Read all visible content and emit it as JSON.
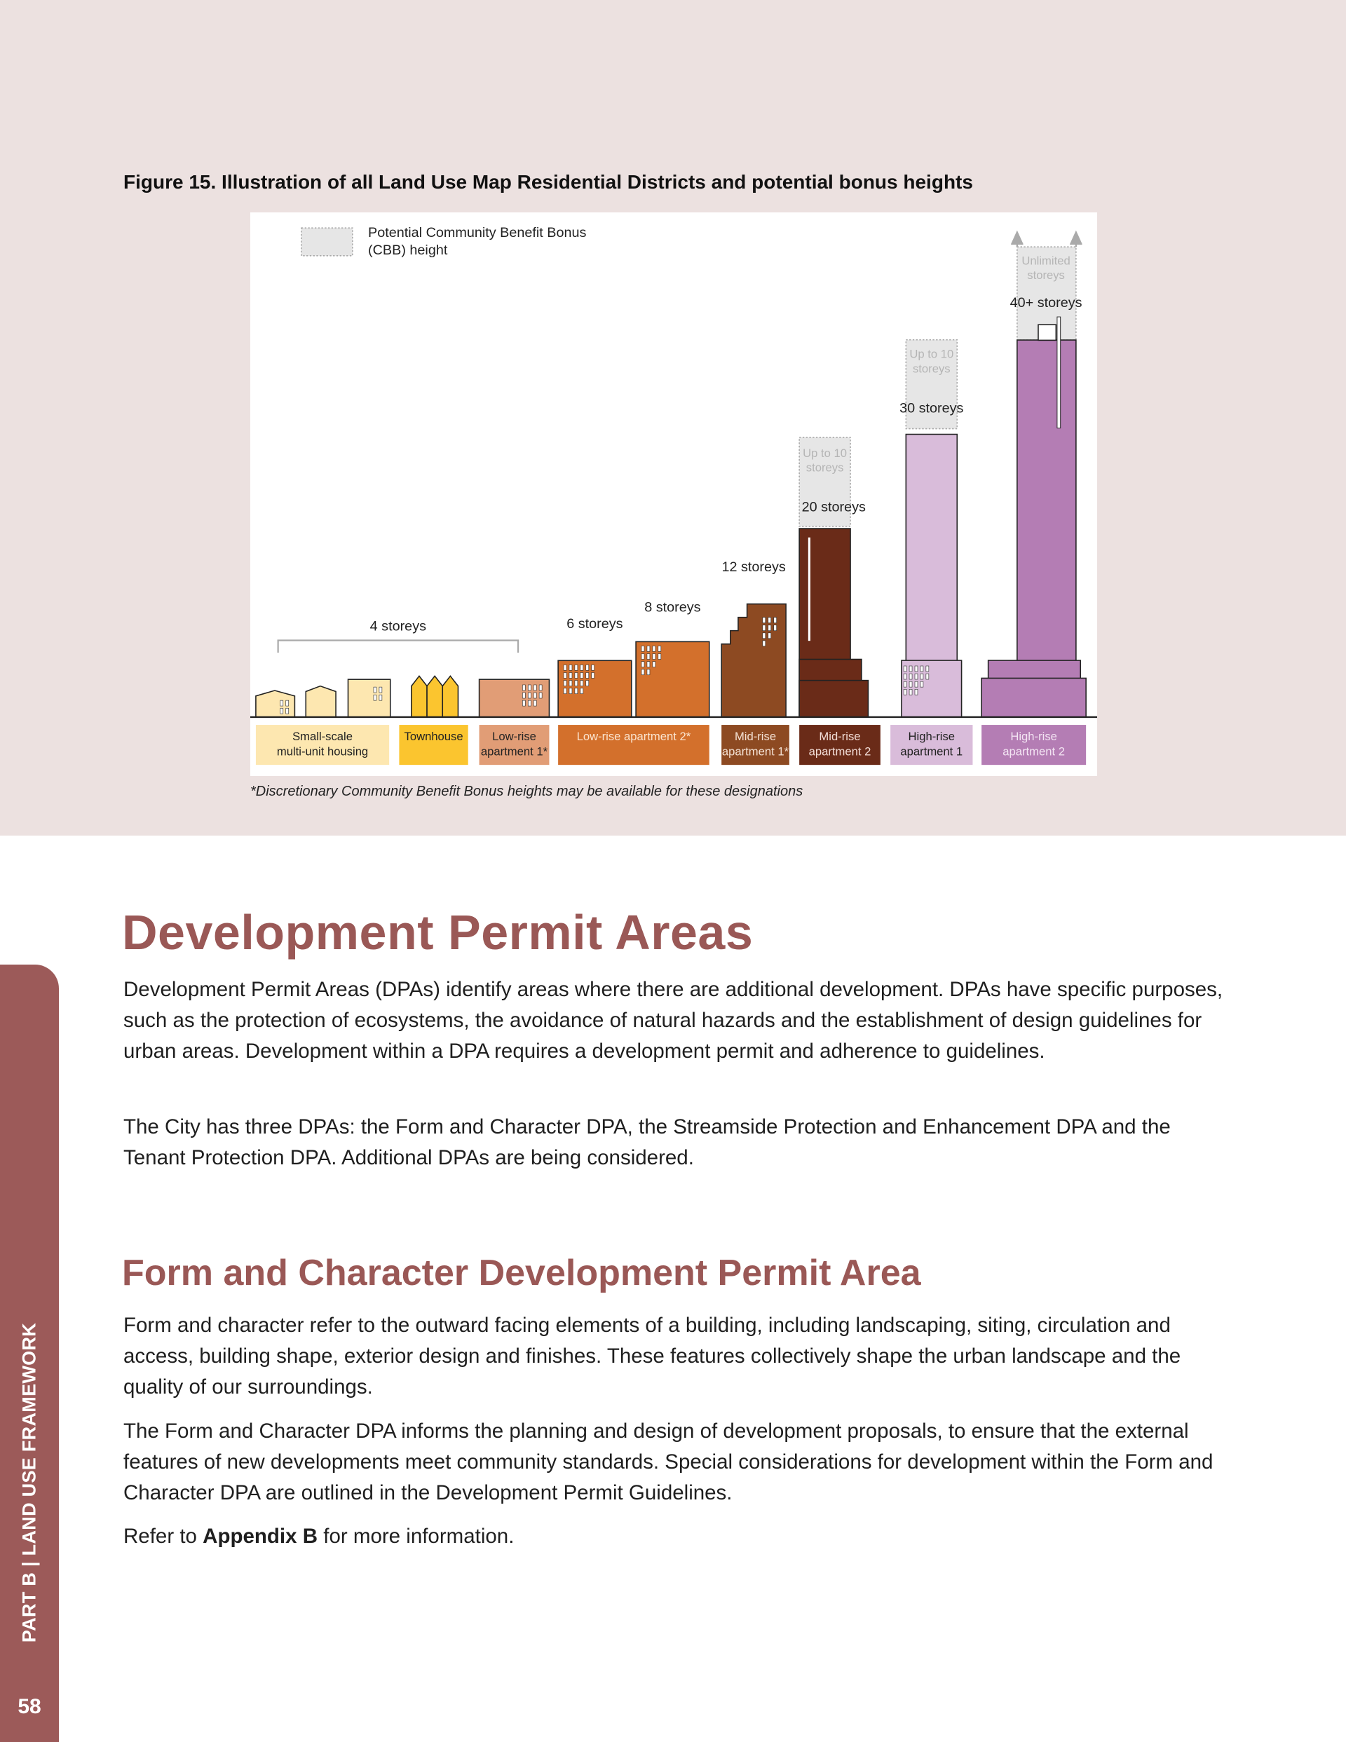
{
  "figure": {
    "title": "Figure 15. Illustration of all Land Use Map Residential Districts and potential bonus heights",
    "footnote": "*Discretionary Community Benefit Bonus heights may be available for these designations"
  },
  "chart_data": {
    "type": "bar",
    "title": "",
    "legend": {
      "line1": "Potential Community Benefit Bonus",
      "line2": "(CBB) height",
      "placement": "top-left"
    },
    "grid": false,
    "categories": [
      "Small-scale multi-unit housing",
      "Townhouse",
      "Low-rise apartment 1*",
      "Low-rise apartment 2*",
      "Mid-rise apartment 1*",
      "Mid-rise apartment 2",
      "High-rise apartment 1",
      "High-rise apartment 2"
    ],
    "category_labels": [
      [
        "Small-scale",
        "multi-unit housing"
      ],
      [
        "Townhouse"
      ],
      [
        "Low-rise",
        "apartment 1*"
      ],
      [
        "Low-rise apartment 2*"
      ],
      [
        "Mid-rise",
        "apartment 1*"
      ],
      [
        "Mid-rise",
        "apartment 2"
      ],
      [
        "High-rise",
        "apartment 1"
      ],
      [
        "High-rise",
        "apartment 2"
      ]
    ],
    "base_storeys": [
      4,
      4,
      4,
      [
        6,
        8
      ],
      12,
      20,
      30,
      40
    ],
    "height_labels": {
      "group_4": "4 storeys",
      "lr2a": "6 storeys",
      "lr2b": "8 storeys",
      "mr1": "12 storeys",
      "mr2": "20 storeys",
      "hr1": "30 storeys",
      "hr2": "40+ storeys"
    },
    "cbb": {
      "mr2": {
        "storeys": 10,
        "line1": "Up to 10",
        "line2": "storeys"
      },
      "hr1": {
        "storeys": 10,
        "line1": "Up to 10",
        "line2": "storeys"
      },
      "hr2": {
        "storeys": "unlimited",
        "line1": "Unlimited",
        "line2": "storeys"
      }
    },
    "colors": {
      "small_scale": "#fde7b0",
      "townhouse": "#fbc52f",
      "low_rise_1": "#e19d76",
      "low_rise_2": "#d3702c",
      "mid_rise_1": "#8d4a22",
      "mid_rise_2": "#6a2b18",
      "high_rise_1": "#d9bcda",
      "high_rise_2": "#b47db4",
      "cbb": "#e6e6e6"
    }
  },
  "section1": {
    "heading": "Development Permit Areas",
    "p1": "Development Permit Areas (DPAs) identify areas where there are additional development. DPAs have specific purposes, such as the protection of ecosystems, the avoidance of natural hazards and the establishment of design guidelines for urban areas. Development within a DPA requires a development permit and adherence to guidelines.",
    "p2": "The City has three DPAs: the Form and Character DPA, the Streamside Protection and Enhancement DPA and the Tenant Protection DPA. Additional DPAs are being considered."
  },
  "section2": {
    "heading": "Form and Character Development Permit Area",
    "p1": "Form and character refer to the outward facing elements of a building, including landscaping, siting, circulation and access, building shape, exterior design and finishes. These features collectively shape the urban landscape and the quality of our surroundings.",
    "p2": "The Form and Character DPA informs the planning and design of development proposals, to ensure that the external features of new developments meet community standards. Special considerations for development within the Form and Character DPA are outlined in the Development Permit Guidelines.",
    "p3_prefix": "Refer to ",
    "p3_bold": "Appendix B",
    "p3_suffix": " for more information."
  },
  "sidebar": {
    "section_label": "PART B  |  LAND USE FRAMEWORK",
    "page_number": "58"
  }
}
